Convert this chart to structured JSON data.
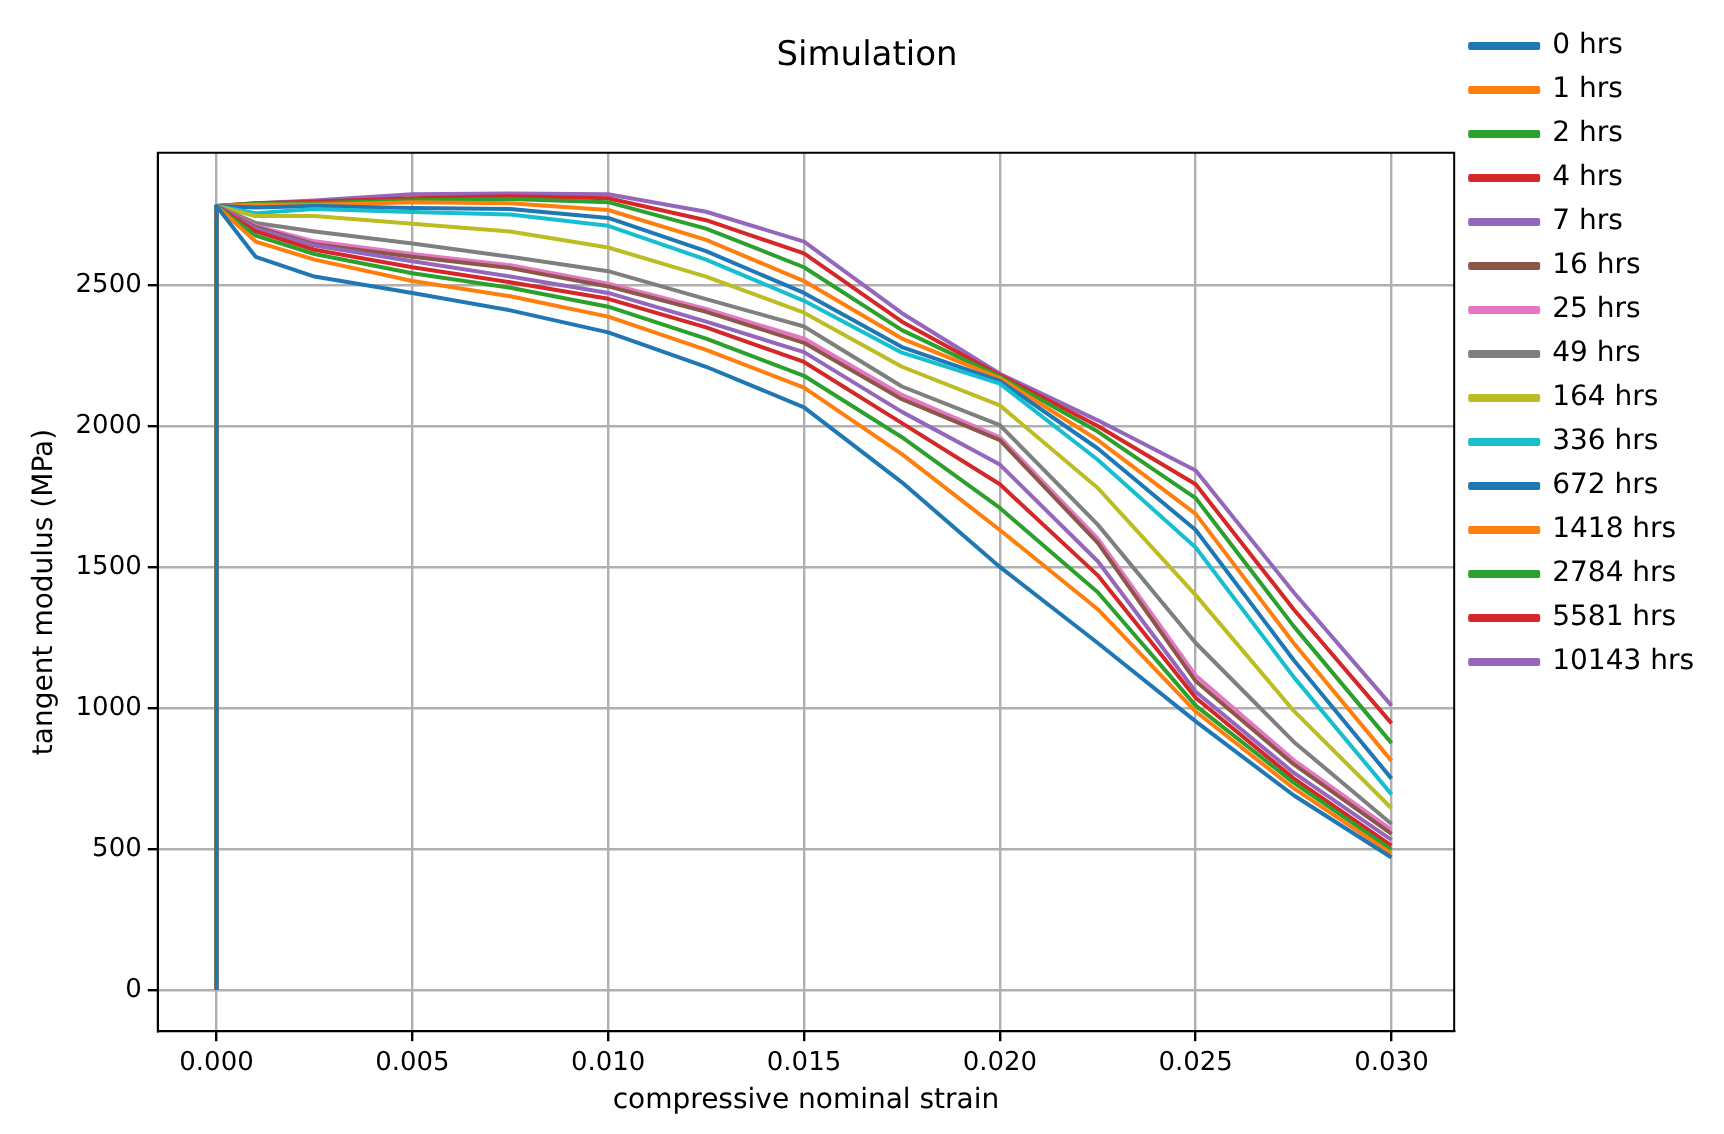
{
  "chart_data": {
    "type": "line",
    "title": "Simulation",
    "xlabel": "compressive nominal strain",
    "ylabel": "tangent modulus (MPa)",
    "x": [
      0,
      0,
      0.001,
      0.0025,
      0.005,
      0.0075,
      0.01,
      0.0125,
      0.015,
      0.0175,
      0.02,
      0.0225,
      0.025,
      0.0275,
      0.03
    ],
    "xlim": [
      -0.0015,
      0.0316
    ],
    "ylim": [
      -147,
      2969
    ],
    "xticks": [
      {
        "value": 0,
        "label": "0.000"
      },
      {
        "value": 0.005,
        "label": "0.005"
      },
      {
        "value": 0.01,
        "label": "0.010"
      },
      {
        "value": 0.015,
        "label": "0.015"
      },
      {
        "value": 0.02,
        "label": "0.020"
      },
      {
        "value": 0.025,
        "label": "0.025"
      },
      {
        "value": 0.03,
        "label": "0.030"
      }
    ],
    "yticks": [
      0,
      500,
      1000,
      1500,
      2000,
      2500
    ],
    "grid": true,
    "legend": "right",
    "marker": "none",
    "line_style": "solid",
    "series": [
      {
        "name": "0 hrs",
        "color": "#1f77b4",
        "values": [
          0,
          2780,
          2600,
          2530,
          2472,
          2410,
          2332,
          2210,
          2066,
          1800,
          1500,
          1230,
          952,
          690,
          469
        ]
      },
      {
        "name": "1 hrs",
        "color": "#ff7f0e",
        "values": [
          0,
          2780,
          2654,
          2590,
          2514,
          2460,
          2388,
          2270,
          2136,
          1900,
          1631,
          1350,
          987,
          715,
          483
        ]
      },
      {
        "name": "2 hrs",
        "color": "#2ca02c",
        "values": [
          0,
          2780,
          2675,
          2610,
          2542,
          2490,
          2423,
          2310,
          2178,
          1960,
          1709,
          1410,
          1008,
          735,
          497
        ]
      },
      {
        "name": "4 hrs",
        "color": "#d62728",
        "values": [
          0,
          2780,
          2690,
          2625,
          2563,
          2510,
          2451,
          2350,
          2227,
          2010,
          1793,
          1470,
          1036,
          750,
          511
        ]
      },
      {
        "name": "7 hrs",
        "color": "#9467bd",
        "values": [
          0,
          2780,
          2700,
          2640,
          2584,
          2530,
          2472,
          2370,
          2262,
          2050,
          1863,
          1520,
          1057,
          770,
          532
        ]
      },
      {
        "name": "16 hrs",
        "color": "#8c564b",
        "values": [
          0,
          2780,
          2705,
          2645,
          2600,
          2560,
          2495,
          2405,
          2295,
          2095,
          1950,
          1585,
          1095,
          800,
          553
        ]
      },
      {
        "name": "25 hrs",
        "color": "#e377c2",
        "values": [
          0,
          2780,
          2710,
          2655,
          2610,
          2570,
          2505,
          2415,
          2310,
          2110,
          1960,
          1600,
          1115,
          815,
          567
        ]
      },
      {
        "name": "49 hrs",
        "color": "#7f7f7f",
        "values": [
          0,
          2780,
          2720,
          2690,
          2647,
          2600,
          2549,
          2450,
          2353,
          2140,
          2003,
          1650,
          1230,
          880,
          588
        ]
      },
      {
        "name": "164 hrs",
        "color": "#bcbd22",
        "values": [
          0,
          2780,
          2745,
          2745,
          2717,
          2690,
          2633,
          2530,
          2402,
          2210,
          2073,
          1780,
          1400,
          990,
          644
        ]
      },
      {
        "name": "336 hrs",
        "color": "#17becf",
        "values": [
          0,
          2780,
          2755,
          2770,
          2759,
          2750,
          2710,
          2590,
          2444,
          2260,
          2150,
          1880,
          1569,
          1110,
          693
        ]
      },
      {
        "name": "672 hrs",
        "color": "#1f77b4",
        "values": [
          0,
          2780,
          2775,
          2780,
          2773,
          2770,
          2738,
          2620,
          2472,
          2280,
          2160,
          1920,
          1631,
          1170,
          749
        ]
      },
      {
        "name": "1418 hrs",
        "color": "#ff7f0e",
        "values": [
          0,
          2780,
          2785,
          2785,
          2794,
          2790,
          2766,
          2660,
          2514,
          2310,
          2170,
          1950,
          1688,
          1230,
          812
        ]
      },
      {
        "name": "2784 hrs",
        "color": "#2ca02c",
        "values": [
          0,
          2780,
          2788,
          2790,
          2801,
          2805,
          2794,
          2700,
          2563,
          2340,
          2175,
          1980,
          1744,
          1290,
          875
        ]
      },
      {
        "name": "5581 hrs",
        "color": "#d62728",
        "values": [
          0,
          2780,
          2790,
          2795,
          2808,
          2815,
          2808,
          2730,
          2612,
          2370,
          2180,
          2000,
          1793,
          1350,
          945
        ]
      },
      {
        "name": "10143 hrs",
        "color": "#9467bd",
        "values": [
          0,
          2780,
          2790,
          2800,
          2822,
          2825,
          2822,
          2760,
          2654,
          2400,
          2185,
          2020,
          1842,
          1410,
          1008
        ]
      }
    ]
  }
}
